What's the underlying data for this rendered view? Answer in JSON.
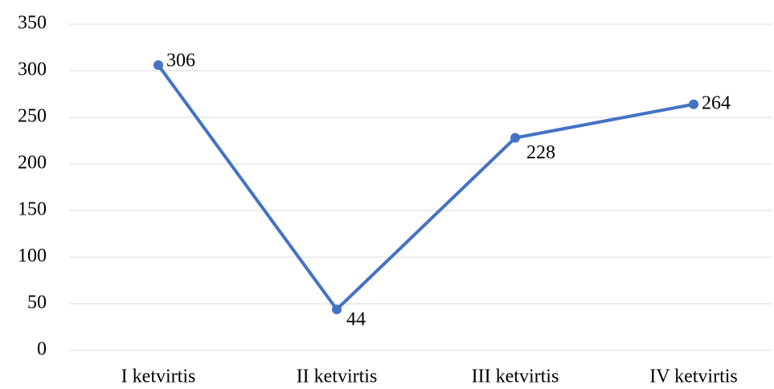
{
  "chart_data": {
    "type": "line",
    "categories": [
      "I ketvirtis",
      "II ketvirtis",
      "III ketvirtis",
      "IV ketvirtis"
    ],
    "series": [
      {
        "color": "#4472c4",
        "values": [
          306,
          44,
          228,
          264
        ]
      }
    ],
    "ylim": [
      0,
      350
    ],
    "yticks": [
      0,
      50,
      100,
      150,
      200,
      250,
      300,
      350
    ],
    "grid": true
  }
}
